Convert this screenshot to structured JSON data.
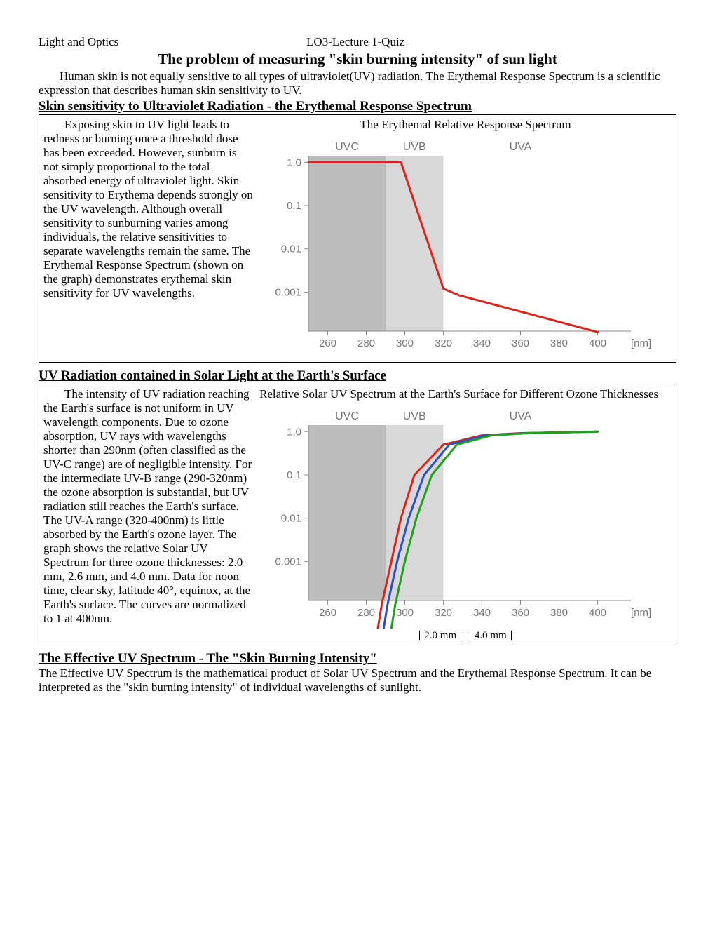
{
  "header": {
    "left": "Light and Optics",
    "center": "LO3-Lecture 1-Quiz"
  },
  "main_title": "The problem of measuring \"skin burning intensity\" of sun light",
  "intro": "Human skin is not equally sensitive to all types of ultraviolet(UV) radiation. The Erythemal Response Spectrum is a scientific expression that describes human skin sensitivity to UV.",
  "section1": {
    "heading": "Skin sensitivity to Ultraviolet Radiation - the Erythemal Response Spectrum",
    "text": "Exposing skin to UV light leads to redness or burning once a threshold dose has been exceeded. However, sunburn is not simply proportional to the total absorbed energy of ultraviolet light. Skin sensitivity to Erythema depends strongly on the UV wavelength. Although overall sensitivity to sunburning varies among individuals, the relative sensitivities to separate wavelengths remain the same. The Erythemal Response Spectrum (shown on the graph) demonstrates erythemal skin sensitivity for UV wavelengths.",
    "chart_title": "The Erythemal Relative Response Spectrum"
  },
  "section2": {
    "heading": "UV Radiation contained in Solar Light at the Earth's Surface",
    "text": "The intensity of UV radiation reaching the Earth's surface is not uniform in UV wavelength components.  Due to ozone absorption, UV rays with wavelengths shorter than 290nm (often classified as the UV-C range) are of negligible intensity. For the intermediate UV-B range (290-320nm) the ozone absorption is substantial, but UV radiation still reaches the Earth's surface. The UV-A range (320-400nm) is little absorbed by the Earth's ozone layer. The graph shows the relative Solar UV Spectrum for three ozone thicknesses: 2.0 mm, 2.6 mm, and 4.0 mm. Data for noon time, clear sky, latitude 40°, equinox, at the Earth's surface. The curves are normalized to 1 at 400nm.",
    "chart_title": "Relative Solar UV Spectrum at the Earth's Surface for Different Ozone Thicknesses",
    "legend": {
      "a": "2.0 mm",
      "b": "4.0 mm"
    }
  },
  "section3": {
    "heading": "The Effective UV Spectrum - The \"Skin Burning Intensity\"",
    "text": "The Effective UV Spectrum is the mathematical product of Solar UV Spectrum and the Erythemal Response Spectrum. It can be interpreted as the \"skin burning intensity\" of individual wavelengths of sunlight."
  },
  "chart_common": {
    "xlabel": "[nm]",
    "xticks": [
      260,
      280,
      300,
      320,
      340,
      360,
      380,
      400
    ],
    "yticks": [
      "1.0",
      "0.1",
      "0.01",
      "0.001"
    ],
    "bands": {
      "uvc": {
        "label": "UVC",
        "from": 250,
        "to": 290,
        "color": "#bcbcbc"
      },
      "uvb": {
        "label": "UVB",
        "from": 290,
        "to": 320,
        "color": "#d8d8d8"
      },
      "uva": {
        "label": "UVA",
        "from": 320,
        "to": 400,
        "color": "#ffffff"
      }
    },
    "tick_color": "#888888",
    "text_color": "#777777",
    "line_width": 3
  },
  "chart1": {
    "type": "line",
    "series": [
      {
        "color": "#d9261c",
        "points": [
          [
            250,
            1.0
          ],
          [
            298,
            1.0
          ],
          [
            320,
            0.0012
          ],
          [
            328,
            0.00085
          ],
          [
            400,
            0.00012
          ]
        ]
      }
    ]
  },
  "chart2": {
    "type": "line",
    "series": [
      {
        "color": "#d9261c",
        "points": [
          [
            285,
            1.5e-05
          ],
          [
            288,
            0.0001
          ],
          [
            293,
            0.001
          ],
          [
            298,
            0.01
          ],
          [
            305,
            0.1
          ],
          [
            320,
            0.5
          ],
          [
            340,
            0.82
          ],
          [
            360,
            0.92
          ],
          [
            400,
            1.0
          ]
        ]
      },
      {
        "color": "#2a4fc7",
        "points": [
          [
            288,
            1.5e-05
          ],
          [
            291,
            0.0001
          ],
          [
            296,
            0.001
          ],
          [
            302,
            0.01
          ],
          [
            310,
            0.1
          ],
          [
            323,
            0.5
          ],
          [
            342,
            0.82
          ],
          [
            362,
            0.92
          ],
          [
            400,
            1.0
          ]
        ]
      },
      {
        "color": "#1fa01f",
        "points": [
          [
            292,
            1.5e-05
          ],
          [
            295,
            0.0001
          ],
          [
            300,
            0.001
          ],
          [
            306,
            0.01
          ],
          [
            314,
            0.1
          ],
          [
            327,
            0.5
          ],
          [
            345,
            0.82
          ],
          [
            364,
            0.92
          ],
          [
            400,
            1.0
          ]
        ]
      }
    ]
  }
}
